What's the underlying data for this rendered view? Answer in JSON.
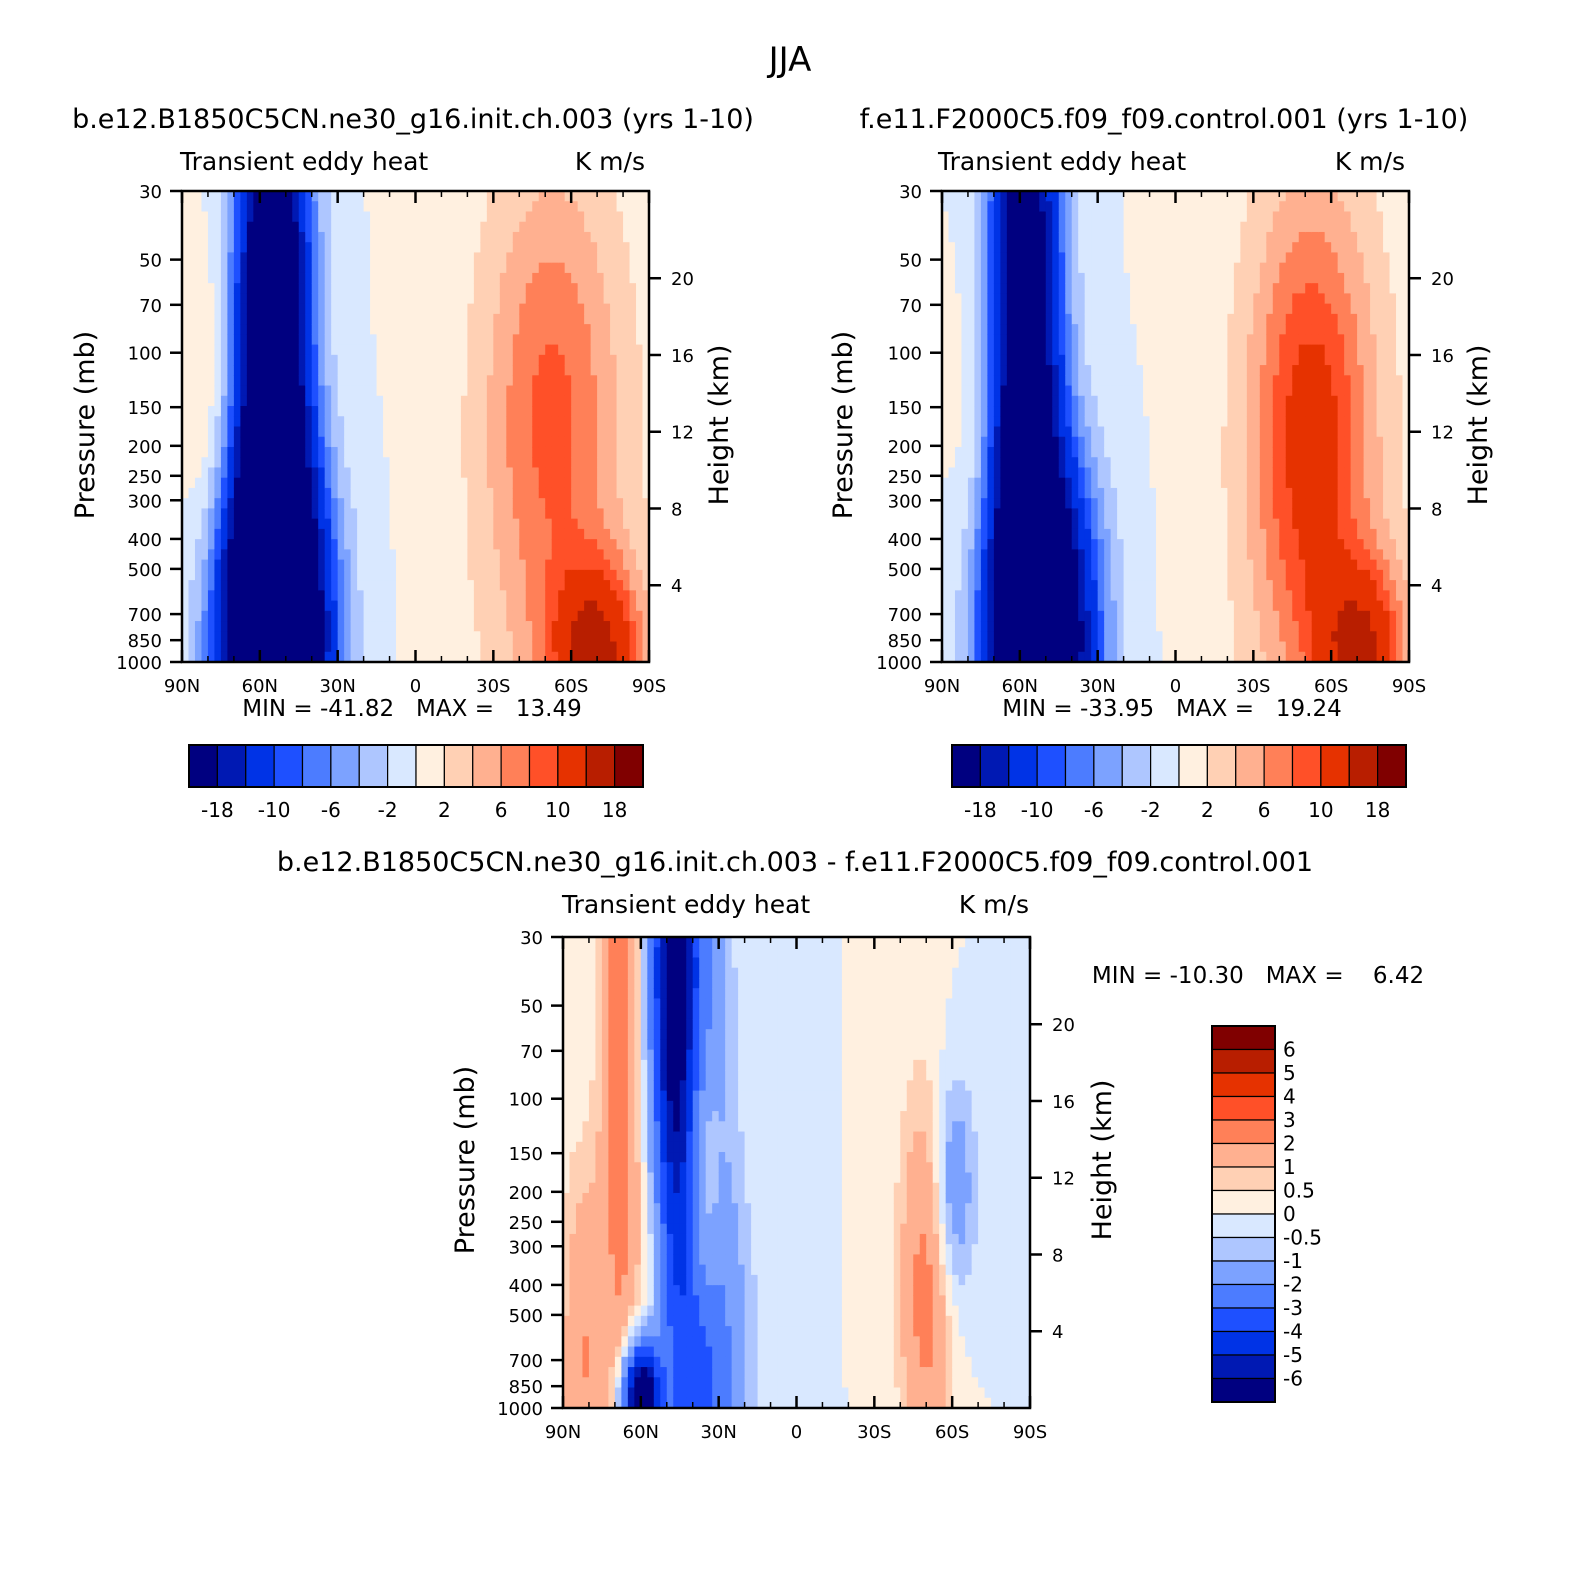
{
  "figure": {
    "title": "JJA"
  },
  "colors": {
    "panel_scale": [
      "#000080",
      "#0019b3",
      "#0033e6",
      "#1e50ff",
      "#4c7cff",
      "#7ca2ff",
      "#aec6ff",
      "#d9e8ff",
      "#fff0e0",
      "#ffd0b4",
      "#ffb090",
      "#ff8058",
      "#ff5028",
      "#e63200",
      "#b81e00",
      "#800000"
    ],
    "diff_scale": [
      "#000080",
      "#0019b3",
      "#0033e6",
      "#1e50ff",
      "#4c7cff",
      "#7ca2ff",
      "#aec6ff",
      "#d9e8ff",
      "#fff0e0",
      "#ffd0b4",
      "#ffb090",
      "#ff8058",
      "#ff5028",
      "#e63200",
      "#b81e00",
      "#800000"
    ]
  },
  "chart_data": [
    {
      "type": "heatmap",
      "panel": "a",
      "title": "b.e12.B1850C5CN.ne30_g16.init.ch.003 (yrs 1-10)",
      "subtitle_left": "Transient eddy heat",
      "subtitle_right": "K m/s",
      "ylabel": "Pressure (mb)",
      "ylabel_right": "Height (km)",
      "x_ticks": [
        "90N",
        "60N",
        "30N",
        "0",
        "30S",
        "60S",
        "90S"
      ],
      "y_ticks": [
        "30",
        "50",
        "70",
        "100",
        "150",
        "200",
        "250",
        "300",
        "400",
        "500",
        "700",
        "850",
        "1000"
      ],
      "y_ticks_right": [
        "20",
        "16",
        "12",
        "8",
        "4"
      ],
      "min": -41.82,
      "max": 13.49,
      "stats_text": "MIN = -41.82   MAX =   13.49",
      "colorbar_labels": [
        "-18",
        "-10",
        "-6",
        "-2",
        "2",
        "6",
        "10",
        "18"
      ],
      "colorbar_levels": [
        -18,
        -14,
        -10,
        -8,
        -6,
        -4,
        -2,
        0,
        2,
        4,
        6,
        8,
        10,
        14,
        18
      ],
      "features": [
        {
          "lat": -70,
          "p": 920,
          "value": 13,
          "sx": 12,
          "sy": 0.45
        },
        {
          "lat": -52,
          "p": 150,
          "value": 6,
          "sx": 18,
          "sy": 1.2
        },
        {
          "lat": -55,
          "p": 500,
          "value": 3,
          "sx": 25,
          "sy": 2.5
        },
        {
          "lat": 55,
          "p": 850,
          "value": -40,
          "sx": 14,
          "sy": 0.9
        },
        {
          "lat": 55,
          "p": 200,
          "value": -18,
          "sx": 10,
          "sy": 1.8
        },
        {
          "lat": 55,
          "p": 40,
          "value": -16,
          "sx": 9,
          "sy": 1.5
        },
        {
          "lat": 78,
          "p": 200,
          "value": 3,
          "sx": 8,
          "sy": 1.0
        }
      ]
    },
    {
      "type": "heatmap",
      "panel": "b",
      "title": "f.e11.F2000C5.f09_f09.control.001 (yrs 1-10)",
      "subtitle_left": "Transient eddy heat",
      "subtitle_right": "K m/s",
      "ylabel": "Pressure (mb)",
      "ylabel_right": "Height (km)",
      "x_ticks": [
        "90N",
        "60N",
        "30N",
        "0",
        "30S",
        "60S",
        "90S"
      ],
      "y_ticks": [
        "30",
        "50",
        "70",
        "100",
        "150",
        "200",
        "250",
        "300",
        "400",
        "500",
        "700",
        "850",
        "1000"
      ],
      "y_ticks_right": [
        "20",
        "16",
        "12",
        "8",
        "4"
      ],
      "min": -33.95,
      "max": 19.24,
      "stats_text": "MIN = -33.95   MAX =   19.24",
      "colorbar_labels": [
        "-18",
        "-10",
        "-6",
        "-2",
        "2",
        "6",
        "10",
        "18"
      ],
      "colorbar_levels": [
        -18,
        -14,
        -10,
        -8,
        -6,
        -4,
        -2,
        0,
        2,
        4,
        6,
        8,
        10,
        14,
        18
      ],
      "features": [
        {
          "lat": -72,
          "p": 920,
          "value": 12,
          "sx": 12,
          "sy": 0.45
        },
        {
          "lat": -52,
          "p": 180,
          "value": 9,
          "sx": 16,
          "sy": 1.2
        },
        {
          "lat": -55,
          "p": 500,
          "value": 3,
          "sx": 25,
          "sy": 2.5
        },
        {
          "lat": 52,
          "p": 850,
          "value": -32,
          "sx": 14,
          "sy": 0.9
        },
        {
          "lat": 58,
          "p": 200,
          "value": -15,
          "sx": 10,
          "sy": 1.8
        },
        {
          "lat": 58,
          "p": 40,
          "value": -14,
          "sx": 9,
          "sy": 1.5
        },
        {
          "lat": 75,
          "p": 200,
          "value": 2.5,
          "sx": 8,
          "sy": 1.0
        }
      ]
    },
    {
      "type": "heatmap",
      "panel": "diff",
      "title": "b.e12.B1850C5CN.ne30_g16.init.ch.003 - f.e11.F2000C5.f09_f09.control.001",
      "subtitle_left": "Transient eddy heat",
      "subtitle_right": "K m/s",
      "ylabel": "Pressure (mb)",
      "ylabel_right": "Height (km)",
      "x_ticks": [
        "90N",
        "60N",
        "30N",
        "0",
        "30S",
        "60S",
        "90S"
      ],
      "y_ticks": [
        "30",
        "50",
        "70",
        "100",
        "150",
        "200",
        "250",
        "300",
        "400",
        "500",
        "700",
        "850",
        "1000"
      ],
      "y_ticks_right": [
        "20",
        "16",
        "12",
        "8",
        "4"
      ],
      "min": -10.3,
      "max": 6.42,
      "stats_text": "MIN = -10.30   MAX =    6.42",
      "colorbar_labels": [
        "6",
        "5",
        "4",
        "3",
        "2",
        "1",
        "0.5",
        "0",
        "-0.5",
        "-1",
        "-2",
        "-3",
        "-4",
        "-5",
        "-6"
      ],
      "colorbar_levels": [
        -6,
        -5,
        -4,
        -3,
        -2,
        -1,
        -0.5,
        0,
        0.5,
        1,
        2,
        3,
        4,
        5,
        6
      ],
      "features": [
        {
          "lat": 48,
          "p": 40,
          "value": -6,
          "sx": 6,
          "sy": 1.6
        },
        {
          "lat": 38,
          "p": 130,
          "value": -3,
          "sx": 8,
          "sy": 2.0
        },
        {
          "lat": 68,
          "p": 60,
          "value": 3,
          "sx": 5,
          "sy": 2.0
        },
        {
          "lat": 36,
          "p": 200,
          "value": 3,
          "sx": 5,
          "sy": 0.8
        },
        {
          "lat": -50,
          "p": 400,
          "value": 2.5,
          "sx": 7,
          "sy": 1.0
        },
        {
          "lat": -60,
          "p": 200,
          "value": -2,
          "sx": 6,
          "sy": 0.6
        },
        {
          "lat": 60,
          "p": 960,
          "value": -9,
          "sx": 5,
          "sy": 0.3
        },
        {
          "lat": 35,
          "p": 800,
          "value": -2,
          "sx": 12,
          "sy": 1.0
        },
        {
          "lat": 82,
          "p": 700,
          "value": 2,
          "sx": 6,
          "sy": 1.0
        },
        {
          "lat": 55,
          "p": 400,
          "value": 1,
          "sx": 6,
          "sy": 1.0
        }
      ]
    }
  ]
}
